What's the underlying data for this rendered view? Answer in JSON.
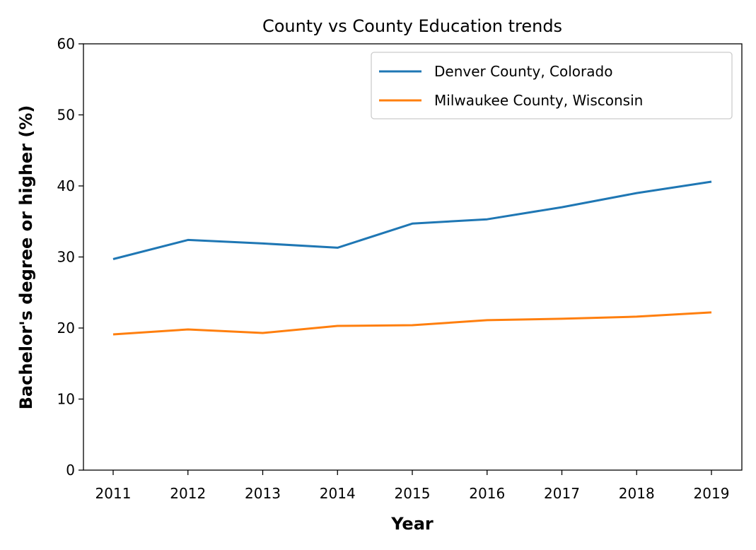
{
  "chart_data": {
    "type": "line",
    "title": "County vs County Education trends",
    "xlabel": "Year",
    "ylabel": "Bachelor's degree or higher (%)",
    "x": [
      2011,
      2012,
      2013,
      2014,
      2015,
      2016,
      2017,
      2018,
      2019
    ],
    "x_tick_labels": [
      "2011",
      "2012",
      "2013",
      "2014",
      "2015",
      "2016",
      "2017",
      "2018",
      "2019"
    ],
    "ylim": [
      0,
      60
    ],
    "y_ticks": [
      0,
      10,
      20,
      30,
      40,
      50,
      60
    ],
    "y_tick_labels": [
      "0",
      "10",
      "20",
      "30",
      "40",
      "50",
      "60"
    ],
    "grid": false,
    "legend_position": "top-right",
    "series": [
      {
        "name": "Denver County, Colorado",
        "color": "#1f77b4",
        "values": [
          29.7,
          32.4,
          31.9,
          31.3,
          34.7,
          35.3,
          37.0,
          39.0,
          40.6
        ]
      },
      {
        "name": "Milwaukee County, Wisconsin",
        "color": "#ff7f0e",
        "values": [
          19.1,
          19.8,
          19.3,
          20.3,
          20.4,
          21.1,
          21.3,
          21.6,
          22.2
        ]
      }
    ]
  }
}
